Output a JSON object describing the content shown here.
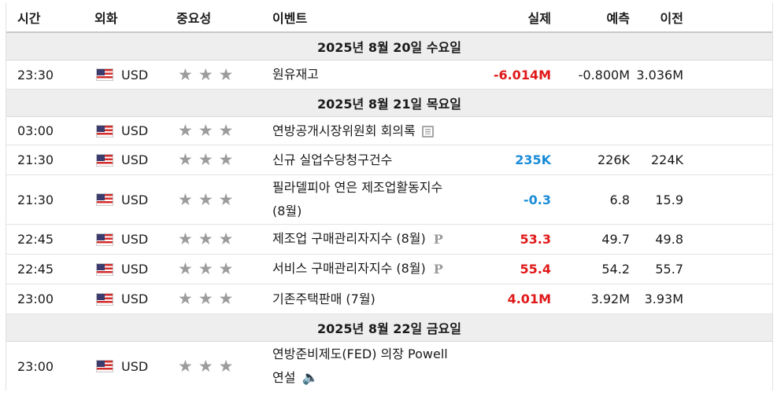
{
  "header": {
    "time": "시간",
    "currency": "외화",
    "importance": "중요성",
    "event": "이벤트",
    "actual": "실제",
    "forecast": "예측",
    "previous": "이전"
  },
  "days": [
    {
      "label": "2025년 8월 20일 수요일"
    },
    {
      "label": "2025년 8월 21일 목요일"
    },
    {
      "label": "2025년 8월 22일 금요일"
    }
  ],
  "events": [
    {
      "time": "23:30",
      "currency": "USD",
      "stars": 3,
      "event": "원유재고",
      "actual": "-6.014M",
      "actual_color": "#e01818",
      "forecast": "-0.800M",
      "previous": "3.036M",
      "icon": ""
    },
    {
      "time": "03:00",
      "currency": "USD",
      "stars": 3,
      "event": "연방공개시장위원회 회의록",
      "actual": "",
      "actual_color": "",
      "forecast": "",
      "previous": "",
      "icon": "document-icon"
    },
    {
      "time": "21:30",
      "currency": "USD",
      "stars": 3,
      "event": "신규 실업수당청구건수",
      "actual": "235K",
      "actual_color": "#1a8cd8",
      "forecast": "226K",
      "previous": "224K",
      "icon": ""
    },
    {
      "time": "21:30",
      "currency": "USD",
      "stars": 3,
      "event_line1": "필라델피아 연은 제조업활동지수",
      "event_line2": "(8월)",
      "actual": "-0.3",
      "actual_color": "#1a8cd8",
      "forecast": "6.8",
      "previous": "15.9",
      "icon": ""
    },
    {
      "time": "22:45",
      "currency": "USD",
      "stars": 3,
      "event": "제조업 구매관리자지수 (8월)",
      "actual": "53.3",
      "actual_color": "#e01818",
      "forecast": "49.7",
      "previous": "49.8",
      "icon": "preliminary-p-icon"
    },
    {
      "time": "22:45",
      "currency": "USD",
      "stars": 3,
      "event": "서비스 구매관리자지수 (8월)",
      "actual": "55.4",
      "actual_color": "#e01818",
      "forecast": "54.2",
      "previous": "55.7",
      "icon": "preliminary-p-icon"
    },
    {
      "time": "23:00",
      "currency": "USD",
      "stars": 3,
      "event": "기존주택판매 (7월)",
      "actual": "4.01M",
      "actual_color": "#e01818",
      "forecast": "3.92M",
      "previous": "3.93M",
      "icon": ""
    },
    {
      "time": "23:00",
      "currency": "USD",
      "stars": 3,
      "event_line1": "연방준비제도(FED) 의장 Powell",
      "event_line2": "연설",
      "actual": "",
      "actual_color": "",
      "forecast": "",
      "previous": "",
      "icon": "speaker-icon"
    }
  ],
  "colors": {
    "positive": "#e01818",
    "negative": "#1a8cd8",
    "star": "#9c9c9c",
    "day_bg": "#eeeeee"
  }
}
